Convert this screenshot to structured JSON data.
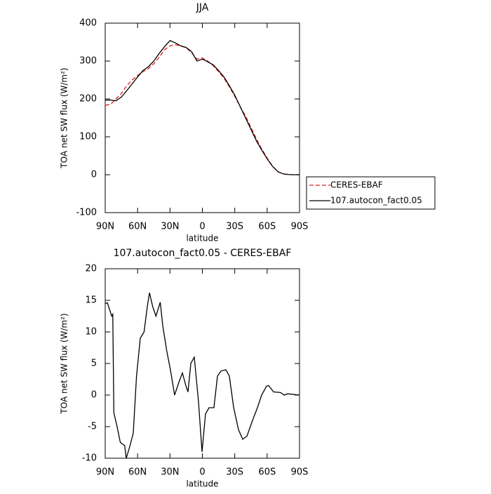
{
  "chart_data": [
    {
      "type": "line",
      "title": "JJA",
      "xlabel": "latitude",
      "ylabel": "TOA net SW flux (W/m²)",
      "xlim": [
        90,
        -90
      ],
      "xticks": [
        {
          "value": 90,
          "label": "90N"
        },
        {
          "value": 60,
          "label": "60N"
        },
        {
          "value": 30,
          "label": "30N"
        },
        0,
        {
          "value": -30,
          "label": "30S"
        },
        {
          "value": -60,
          "label": "60S"
        },
        {
          "value": -90,
          "label": "90S"
        }
      ],
      "ylim": [
        -100,
        400
      ],
      "yticks": [
        -100,
        0,
        100,
        200,
        300,
        400
      ],
      "legend": "right",
      "x": [
        90,
        85,
        80,
        75,
        70,
        65,
        60,
        55,
        50,
        45,
        40,
        35,
        30,
        25,
        20,
        15,
        10,
        5,
        0,
        -5,
        -10,
        -15,
        -20,
        -25,
        -30,
        -35,
        -40,
        -45,
        -50,
        -55,
        -60,
        -65,
        -70,
        -75,
        -80,
        -85,
        -90
      ],
      "series": [
        {
          "name": "CERES-EBAF",
          "color": "#e02020",
          "line_style": "dashed",
          "values": [
            183,
            186,
            200,
            215,
            235,
            250,
            262,
            272,
            280,
            293,
            310,
            330,
            340,
            343,
            340,
            335,
            322,
            305,
            308,
            300,
            288,
            272,
            255,
            232,
            207,
            180,
            155,
            125,
            95,
            68,
            44,
            23,
            8,
            2,
            0.5,
            0,
            0
          ]
        },
        {
          "name": "107.autocon_fact0.05",
          "color": "#000000",
          "line_style": "solid",
          "values": [
            197,
            197,
            195,
            205,
            222,
            240,
            258,
            275,
            285,
            300,
            320,
            338,
            354,
            348,
            340,
            336,
            325,
            300,
            305,
            298,
            290,
            275,
            258,
            235,
            210,
            180,
            150,
            120,
            90,
            65,
            42,
            22,
            8,
            2,
            0.5,
            0,
            0
          ]
        }
      ]
    },
    {
      "type": "line",
      "title": "107.autocon_fact0.05 - CERES-EBAF",
      "xlabel": "latitude",
      "ylabel": "TOA net SW flux (W/m²)",
      "xlim": [
        90,
        -90
      ],
      "xticks": [
        {
          "value": 90,
          "label": "90N"
        },
        {
          "value": 60,
          "label": "60N"
        },
        {
          "value": 30,
          "label": "30N"
        },
        0,
        {
          "value": -30,
          "label": "30S"
        },
        {
          "value": -60,
          "label": "60S"
        },
        {
          "value": -90,
          "label": "90S"
        }
      ],
      "ylim": [
        -10,
        20
      ],
      "yticks": [
        -10,
        -5,
        0,
        5,
        10,
        15,
        20
      ],
      "x": [
        90,
        88,
        84,
        83,
        82,
        79,
        76,
        72,
        70.5,
        67,
        64,
        61,
        57.5,
        54,
        51,
        49,
        46,
        43,
        39,
        36.7,
        33,
        29.6,
        25.7,
        21.8,
        18.5,
        15.3,
        13.3,
        10.7,
        7.5,
        3.6,
        0.3,
        -2.9,
        -6.2,
        -10.7,
        -14,
        -17.2,
        -21.8,
        -25,
        -29,
        -33.5,
        -37.4,
        -41.3,
        -46.5,
        -51,
        -54.9,
        -59.4,
        -61.4,
        -66,
        -72.4,
        -75.7,
        -79,
        -90
      ],
      "series": [
        {
          "name": "107.autocon_fact0.05 - CERES-EBAF",
          "color": "#000000",
          "line_style": "solid",
          "values": [
            14.5,
            14.6,
            12.5,
            12.8,
            -2.8,
            -5,
            -7.5,
            -8,
            -10,
            -8,
            -6,
            3,
            9,
            10,
            14,
            16.2,
            14,
            12.5,
            14.7,
            11,
            7,
            4,
            0,
            2,
            3.5,
            1.5,
            0.5,
            5,
            6,
            -1,
            -9,
            -3,
            -2,
            -2,
            3,
            3.8,
            4,
            3,
            -2,
            -5.5,
            -7,
            -6.5,
            -4,
            -2,
            0,
            1.4,
            1.5,
            0.5,
            0.4,
            0,
            0.2,
            0
          ]
        }
      ]
    }
  ]
}
